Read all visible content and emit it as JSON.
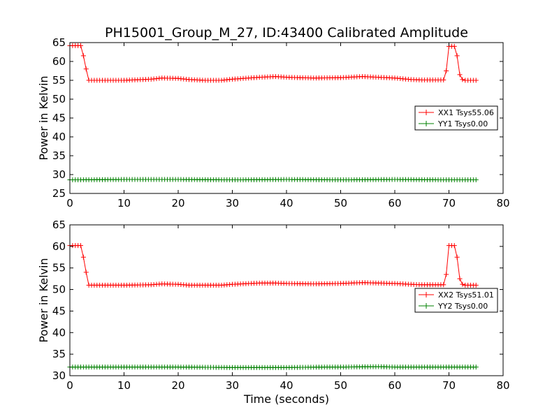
{
  "figure": {
    "title": "PH15001_Group_M_27, ID:43400 Calibrated Amplitude",
    "xlabel": "Time (seconds)"
  },
  "chart_data": [
    {
      "type": "line",
      "xlabel": "",
      "ylabel": "Power in Kelvin",
      "xlim": [
        0,
        80
      ],
      "ylim": [
        25,
        65
      ],
      "xticks": [
        0,
        10,
        20,
        30,
        40,
        50,
        60,
        70,
        80
      ],
      "yticks": [
        25,
        30,
        35,
        40,
        45,
        50,
        55,
        60,
        65
      ],
      "grid": false,
      "legend": "center-right",
      "series": [
        {
          "name": "XX1 Tsys55.06",
          "color": "#ff0000",
          "marker": "+",
          "points": [
            [
              0,
              64.2
            ],
            [
              1,
              64.2
            ],
            [
              2,
              64.2
            ],
            [
              2.5,
              61.5
            ],
            [
              3,
              58
            ],
            [
              3.5,
              55
            ],
            [
              5,
              55
            ],
            [
              10,
              55
            ],
            [
              15,
              55.3
            ],
            [
              17,
              55.6
            ],
            [
              20,
              55.5
            ],
            [
              22,
              55.2
            ],
            [
              25,
              55
            ],
            [
              28,
              55
            ],
            [
              30,
              55.3
            ],
            [
              35,
              55.8
            ],
            [
              38,
              56
            ],
            [
              40,
              55.8
            ],
            [
              45,
              55.6
            ],
            [
              50,
              55.7
            ],
            [
              54,
              56
            ],
            [
              57,
              55.8
            ],
            [
              60,
              55.6
            ],
            [
              63,
              55.2
            ],
            [
              65,
              55.1
            ],
            [
              68,
              55.1
            ],
            [
              69,
              55.1
            ],
            [
              69.5,
              57.5
            ],
            [
              70,
              64
            ],
            [
              71,
              64
            ],
            [
              71.5,
              61.5
            ],
            [
              72,
              56.5
            ],
            [
              72.5,
              55.2
            ],
            [
              73,
              55
            ],
            [
              75,
              55
            ]
          ]
        },
        {
          "name": "YY1 Tsys0.00",
          "color": "#008000",
          "marker": "+",
          "points": [
            [
              0,
              28.6
            ],
            [
              10,
              28.7
            ],
            [
              20,
              28.7
            ],
            [
              30,
              28.6
            ],
            [
              40,
              28.7
            ],
            [
              50,
              28.6
            ],
            [
              60,
              28.7
            ],
            [
              70,
              28.6
            ],
            [
              75,
              28.6
            ]
          ]
        }
      ]
    },
    {
      "type": "line",
      "xlabel": "Time (seconds)",
      "ylabel": "Power in Kelvin",
      "xlim": [
        0,
        80
      ],
      "ylim": [
        30,
        65
      ],
      "xticks": [
        0,
        10,
        20,
        30,
        40,
        50,
        60,
        70,
        80
      ],
      "yticks": [
        30,
        35,
        40,
        45,
        50,
        55,
        60,
        65
      ],
      "grid": false,
      "legend": "center-right",
      "series": [
        {
          "name": "XX2 Tsys51.01",
          "color": "#ff0000",
          "marker": "+",
          "points": [
            [
              0,
              60.2
            ],
            [
              1,
              60.2
            ],
            [
              2,
              60.2
            ],
            [
              2.5,
              57.5
            ],
            [
              3,
              54
            ],
            [
              3.5,
              51
            ],
            [
              5,
              51
            ],
            [
              10,
              51
            ],
            [
              15,
              51.1
            ],
            [
              17,
              51.3
            ],
            [
              20,
              51.2
            ],
            [
              22,
              51
            ],
            [
              25,
              51
            ],
            [
              28,
              51
            ],
            [
              30,
              51.2
            ],
            [
              35,
              51.5
            ],
            [
              38,
              51.5
            ],
            [
              40,
              51.4
            ],
            [
              45,
              51.3
            ],
            [
              50,
              51.4
            ],
            [
              54,
              51.6
            ],
            [
              57,
              51.5
            ],
            [
              60,
              51.4
            ],
            [
              63,
              51.2
            ],
            [
              65,
              51.1
            ],
            [
              68,
              51.1
            ],
            [
              69,
              51.1
            ],
            [
              69.5,
              53.5
            ],
            [
              70,
              60.2
            ],
            [
              71,
              60.2
            ],
            [
              71.5,
              57.5
            ],
            [
              72,
              52.5
            ],
            [
              72.5,
              51.2
            ],
            [
              73,
              51
            ],
            [
              75,
              51
            ]
          ]
        },
        {
          "name": "YY2 Tsys0.00",
          "color": "#008000",
          "marker": "+",
          "points": [
            [
              0,
              32
            ],
            [
              10,
              32
            ],
            [
              20,
              32
            ],
            [
              30,
              31.9
            ],
            [
              40,
              31.9
            ],
            [
              47,
              32
            ],
            [
              50,
              32
            ],
            [
              57,
              32.1
            ],
            [
              60,
              32
            ],
            [
              70,
              32
            ],
            [
              75,
              32
            ]
          ]
        }
      ]
    }
  ]
}
